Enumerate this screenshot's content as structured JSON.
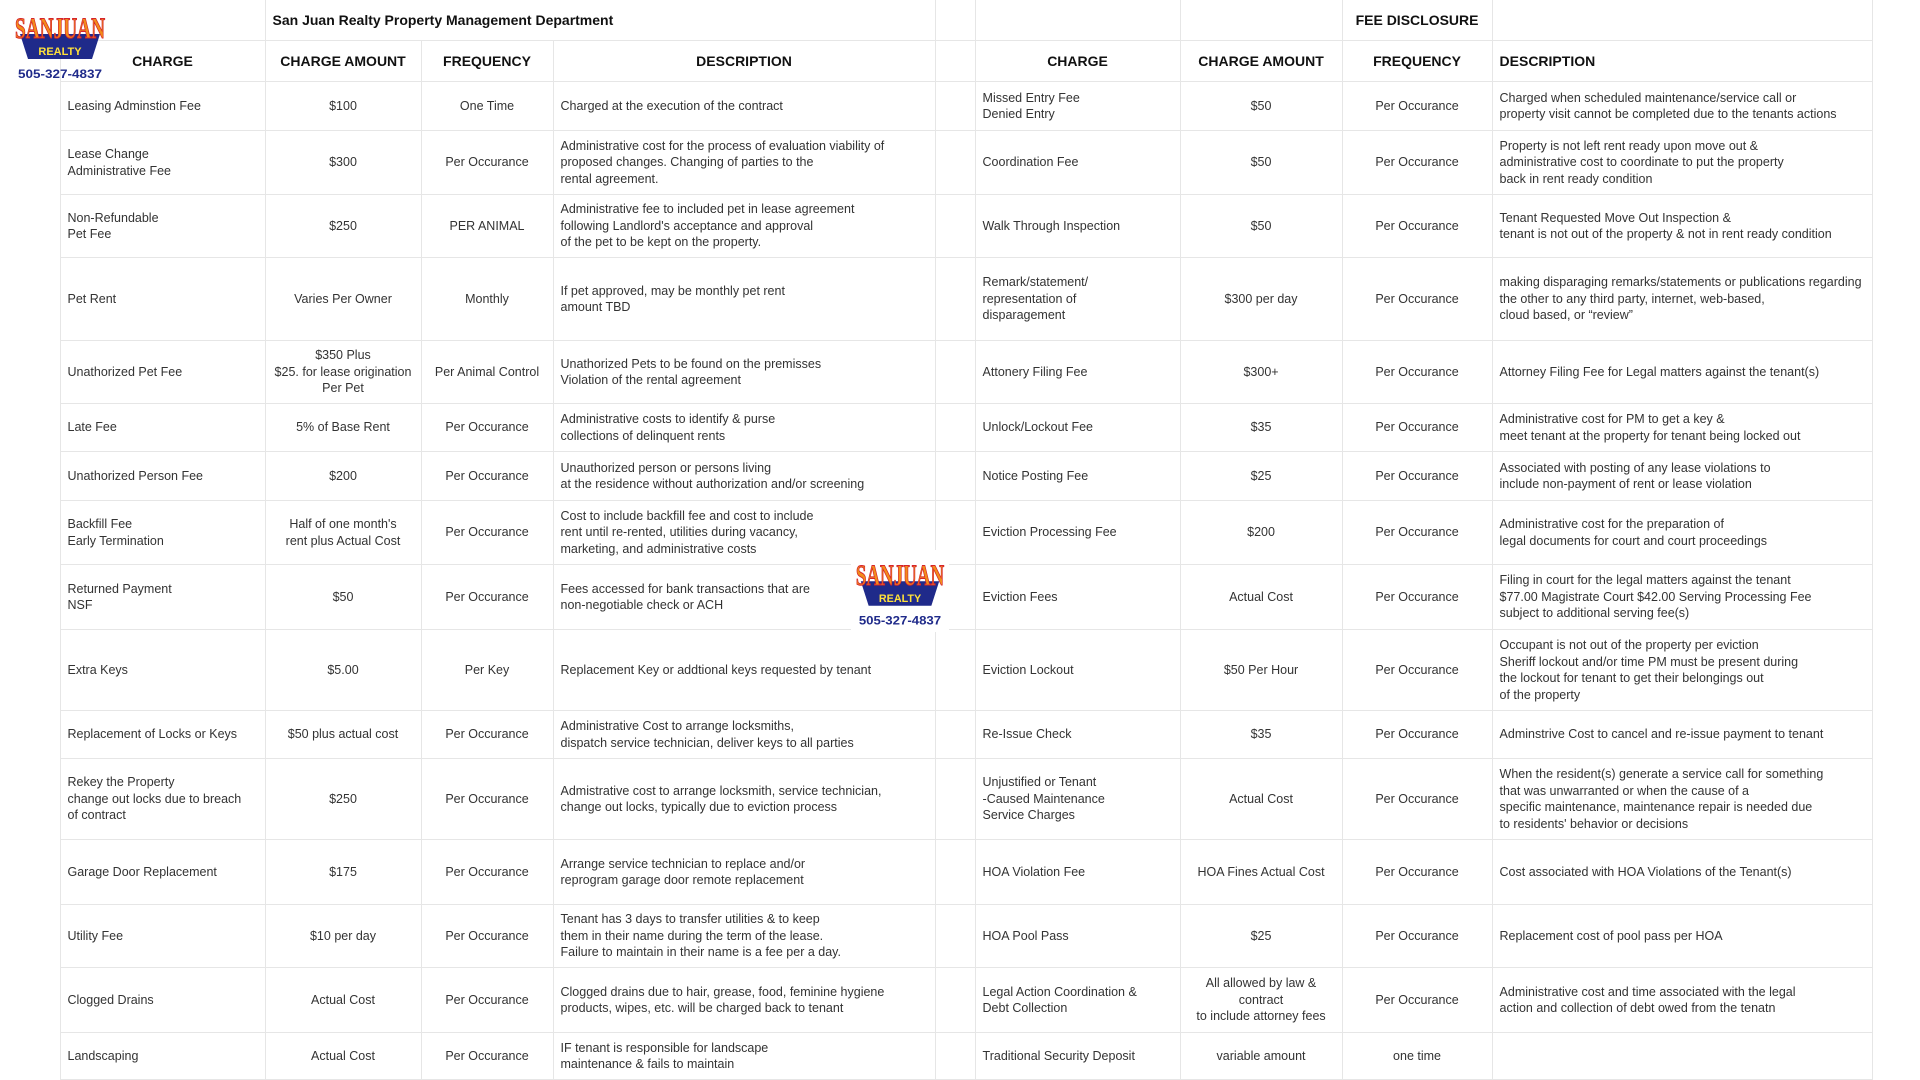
{
  "logo": {
    "name_top": "SANJUAN",
    "name_bottom": "REALTY",
    "phone": "505-327-4837",
    "colors": {
      "blue": "#1f2a8a",
      "orange": "#f28c1a",
      "yellow": "#ffe13a",
      "red": "#d6242b"
    }
  },
  "header": {
    "title": "San Juan Realty Property Management Department",
    "disclosure": "FEE DISCLOSURE"
  },
  "columns": [
    "CHARGE",
    "CHARGE AMOUNT",
    "FREQUENCY",
    "DESCRIPTION"
  ],
  "left_rows": [
    {
      "charge": "Leasing Adminstion Fee",
      "amount": "$100",
      "frequency": "One Time",
      "description": "Charged at the execution of the contract"
    },
    {
      "charge": "Lease Change\nAdministrative Fee",
      "amount": "$300",
      "frequency": "Per Occurance",
      "description": "Administrative cost for the process of evaluation viability of\nproposed changes. Changing of parties to the\nrental agreement."
    },
    {
      "charge": "Non-Refundable\nPet Fee",
      "amount": "$250",
      "frequency": "PER ANIMAL",
      "description": "Administrative fee to included pet in lease agreement\nfollowing Landlord's acceptance and approval\nof the pet to be kept on the property."
    },
    {
      "charge": "Pet Rent",
      "amount": "Varies Per Owner",
      "frequency": "Monthly",
      "description": "If pet approved, may be monthly pet rent\namount TBD"
    },
    {
      "charge": "Unathorized Pet Fee",
      "amount": "$350 Plus\n$25. for lease origination\nPer Pet",
      "frequency": "Per Animal Control",
      "description": "Unathorized Pets to be found on the premisses\nViolation of the rental agreement"
    },
    {
      "charge": "Late Fee",
      "amount": "5% of Base Rent",
      "frequency": "Per Occurance",
      "description": "Administrative costs to identify & purse\ncollections of delinquent rents"
    },
    {
      "charge": "Unathorized Person Fee",
      "amount": "$200",
      "frequency": "Per Occurance",
      "description": "Unauthorized person or persons living\nat the residence without authorization and/or screening"
    },
    {
      "charge": "Backfill Fee\nEarly Termination",
      "amount": "Half of one month's\nrent plus Actual Cost",
      "frequency": "Per Occurance",
      "description": "Cost to include backfill fee and cost to include\nrent until re-rented, utilities during vacancy,\nmarketing, and administrative costs"
    },
    {
      "charge": "Returned Payment\nNSF",
      "amount": "$50",
      "frequency": "Per Occurance",
      "description": "Fees accessed for bank transactions that are\nnon-negotiable check or ACH"
    },
    {
      "charge": "Extra Keys",
      "amount": "$5.00",
      "frequency": "Per Key",
      "description": "Replacement Key or addtional keys requested by tenant"
    },
    {
      "charge": "Replacement of Locks or Keys",
      "amount": "$50 plus actual cost",
      "frequency": "Per Occurance",
      "description": "Administrative Cost to arrange locksmiths,\ndispatch service technician, deliver keys to all parties"
    },
    {
      "charge": "Rekey the Property\nchange out locks due to breach\nof contract",
      "amount": "$250",
      "frequency": "Per Occurance",
      "description": "Admistrative cost to arrange locksmith, service technician,\nchange out locks, typically due to eviction process"
    },
    {
      "charge": "Garage Door Replacement",
      "amount": "$175",
      "frequency": "Per Occurance",
      "description": "Arrange service technician to replace and/or\nreprogram garage door remote replacement"
    },
    {
      "charge": "Utility Fee",
      "amount": "$10 per day",
      "frequency": "Per Occurance",
      "description": "Tenant has 3 days to transfer utilities & to keep\n them in their name during the term of the lease.\nFailure to maintain in their name is a fee per a day."
    },
    {
      "charge": "Clogged Drains",
      "amount": "Actual Cost",
      "frequency": "Per Occurance",
      "description": "Clogged drains due to hair, grease, food, feminine hygiene\nproducts, wipes,  etc.  will be charged back to tenant"
    },
    {
      "charge": "Landscaping",
      "amount": "Actual Cost",
      "frequency": "Per Occurance",
      "description": "IF tenant is responsible for landscape\nmaintenance & fails to maintain"
    }
  ],
  "right_rows": [
    {
      "charge": "Missed Entry Fee\nDenied Entry",
      "amount": "$50",
      "frequency": "Per Occurance",
      "description": "Charged when scheduled maintenance/service call or\nproperty visit cannot be completed due to the tenants actions"
    },
    {
      "charge": "Coordination Fee",
      "amount": "$50",
      "frequency": "Per Occurance",
      "description": "Property is not left rent ready upon move out &\nadministrative cost to coordinate to put the property\nback in rent ready condition"
    },
    {
      "charge": "Walk Through Inspection",
      "amount": "$50",
      "frequency": "Per Occurance",
      "description": "Tenant Requested Move Out Inspection &\ntenant is not out of the property & not in rent ready condition"
    },
    {
      "charge": "Remark/statement/\nrepresentation of\ndisparagement",
      "amount": "$300 per day",
      "frequency": "Per Occurance",
      "description": "making disparaging remarks/statements or publications regarding\nthe other to any third party, internet, web-based,\ncloud based, or “review”"
    },
    {
      "charge": "Attonery Filing Fee",
      "amount": "$300+",
      "frequency": "Per Occurance",
      "description": "Attorney Filing Fee for Legal matters against the tenant(s)"
    },
    {
      "charge": "Unlock/Lockout Fee",
      "amount": "$35",
      "frequency": "Per Occurance",
      "description": "Administrative cost for PM to get a key &\nmeet tenant at the property for tenant being locked out"
    },
    {
      "charge": "Notice Posting Fee",
      "amount": "$25",
      "frequency": "Per Occurance",
      "description": "Associated with posting of any lease violations to\n include non-payment of rent or lease violation"
    },
    {
      "charge": "Eviction Processing Fee",
      "amount": "$200",
      "frequency": "Per Occurance",
      "description": "Administrative cost for the preparation of\nlegal documents for court and court proceedings"
    },
    {
      "charge": "Eviction Fees",
      "amount": "Actual Cost",
      "frequency": "Per Occurance",
      "description": "Filing in court for the legal matters against the tenant\n$77.00 Magistrate Court $42.00 Serving Processing Fee\nsubject to additional serving fee(s)"
    },
    {
      "charge": "Eviction Lockout",
      "amount": "$50 Per Hour",
      "frequency": "Per Occurance",
      "description": "Occupant is not out of the property per eviction\nSheriff lockout and/or time PM must be present during\nthe lockout for tenant to get their belongings out\n of the property"
    },
    {
      "charge": "Re-Issue Check",
      "amount": "$35",
      "frequency": "Per Occurance",
      "description": "Adminstrive Cost to cancel and re-issue payment to tenant"
    },
    {
      "charge": "Unjustified or Tenant\n-Caused Maintenance\nService Charges",
      "amount": "Actual Cost",
      "frequency": "Per Occurance",
      "description": "When the resident(s) generate a service call for something\nthat was unwarranted or when the cause of a\nspecific maintenance, maintenance repair is needed due\nto residents' behavior or decisions"
    },
    {
      "charge": "HOA Violation Fee",
      "amount": "HOA Fines Actual Cost",
      "frequency": "Per Occurance",
      "description": "Cost associated with HOA Violations of the Tenant(s)"
    },
    {
      "charge": "HOA Pool Pass",
      "amount": "$25",
      "frequency": "Per Occurance",
      "description": "Replacement cost of pool pass per HOA"
    },
    {
      "charge": "Legal Action Coordination &\nDebt Collection",
      "amount": "All allowed by law &\ncontract\nto include attorney fees",
      "frequency": "Per Occurance",
      "description": "Administrative cost and time associated with the legal\naction and collection of debt owed from the tenatn"
    },
    {
      "charge": "Traditional Security Deposit",
      "amount": "variable amount",
      "frequency": "one time",
      "description": ""
    }
  ]
}
